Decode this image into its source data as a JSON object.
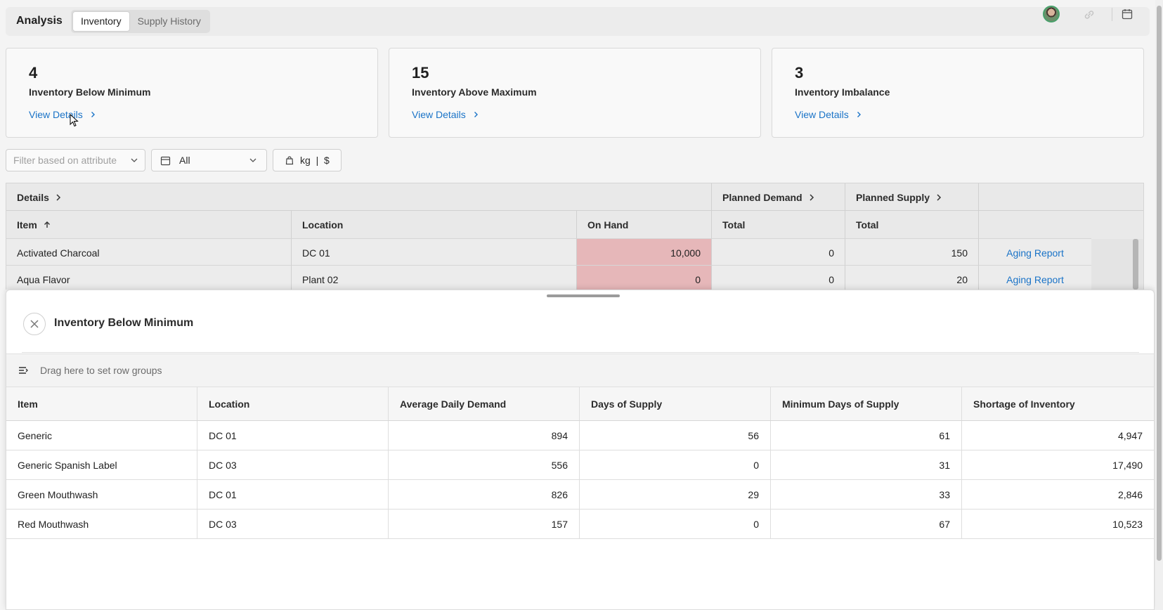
{
  "header": {
    "title": "Analysis",
    "tabs": [
      {
        "label": "Inventory",
        "active": true
      },
      {
        "label": "Supply History",
        "active": false
      }
    ]
  },
  "cards": [
    {
      "value": "4",
      "label": "Inventory Below Minimum",
      "link": "View Details"
    },
    {
      "value": "15",
      "label": "Inventory Above Maximum",
      "link": "View Details"
    },
    {
      "value": "3",
      "label": "Inventory Imbalance",
      "link": "View Details"
    }
  ],
  "filters": {
    "attribute_placeholder": "Filter based on attribute",
    "date_value": "All",
    "unit_value": "kg  |  $"
  },
  "main_table": {
    "group_headers": {
      "details": "Details",
      "planned_demand": "Planned Demand",
      "planned_supply": "Planned Supply"
    },
    "columns": {
      "item": "Item",
      "location": "Location",
      "on_hand": "On Hand",
      "demand_total": "Total",
      "supply_total": "Total"
    },
    "rows": [
      {
        "item": "Activated Charcoal",
        "location": "DC 01",
        "on_hand": "10,000",
        "demand_total": "0",
        "supply_total": "150",
        "action": "Aging Report"
      },
      {
        "item": "Aqua Flavor",
        "location": "Plant 02",
        "on_hand": "0",
        "demand_total": "0",
        "supply_total": "20",
        "action": "Aging Report"
      }
    ]
  },
  "panel": {
    "title": "Inventory Below Minimum",
    "row_group_hint": "Drag here to set row groups",
    "columns": [
      "Item",
      "Location",
      "Average Daily Demand",
      "Days of Supply",
      "Minimum Days of Supply",
      "Shortage of Inventory"
    ],
    "rows": [
      [
        "Generic",
        "DC 01",
        "894",
        "56",
        "61",
        "4,947"
      ],
      [
        "Generic Spanish Label",
        "DC 03",
        "556",
        "0",
        "31",
        "17,490"
      ],
      [
        "Green Mouthwash",
        "DC 01",
        "826",
        "29",
        "33",
        "2,846"
      ],
      [
        "Red Mouthwash",
        "DC 03",
        "157",
        "0",
        "67",
        "10,523"
      ]
    ]
  },
  "colors": {
    "link": "#1a73c7",
    "on_hand_highlight": "#e6b7b9",
    "avatar_ring": "#48a06b"
  },
  "icons": [
    "avatar",
    "link-icon",
    "calendar-icon",
    "chevron-right-icon",
    "chevron-down-icon",
    "bag-icon",
    "sort-ascending-icon",
    "close-icon",
    "row-group-icon"
  ]
}
